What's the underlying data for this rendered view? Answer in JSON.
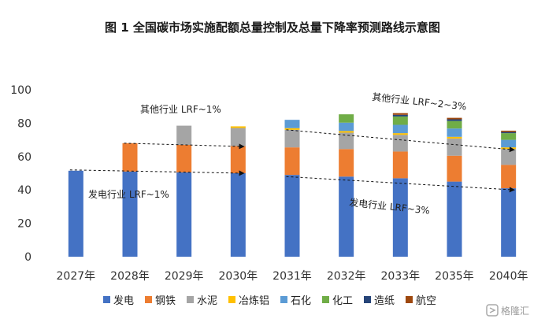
{
  "chart_data": {
    "type": "bar",
    "stacked": true,
    "title": "图 1 全国碳市场实施配额总量控制及总量下降率预测路线示意图",
    "categories": [
      "2027年",
      "2028年",
      "2029年",
      "2030年",
      "2031年",
      "2032年",
      "2033年",
      "2035年",
      "2040年"
    ],
    "ylim": [
      0,
      100
    ],
    "yticks": [
      0,
      20,
      40,
      60,
      80,
      100
    ],
    "grid": false,
    "legend_position": "bottom",
    "series": [
      {
        "name": "发电",
        "color": "#4472C4",
        "values": [
          51.5,
          51.0,
          50.5,
          50.0,
          49.0,
          48.0,
          47.0,
          45.0,
          41.0
        ]
      },
      {
        "name": "钢铁",
        "color": "#ED7D31",
        "values": [
          0,
          17.0,
          16.5,
          16.3,
          16.5,
          16.5,
          16.0,
          15.5,
          14.0
        ]
      },
      {
        "name": "水泥",
        "color": "#A5A5A5",
        "values": [
          0,
          0,
          11.5,
          10.8,
          10.5,
          9.8,
          10.0,
          10.3,
          9.5
        ]
      },
      {
        "name": "冶炼铝",
        "color": "#FFC000",
        "values": [
          0,
          0,
          0,
          1.0,
          1.0,
          1.0,
          1.0,
          1.0,
          1.0
        ]
      },
      {
        "name": "石化",
        "color": "#5B9BD5",
        "values": [
          0,
          0,
          0,
          0,
          5.0,
          5.0,
          5.0,
          5.0,
          4.5
        ]
      },
      {
        "name": "化工",
        "color": "#70AD47",
        "values": [
          0,
          0,
          0,
          0,
          0,
          5.0,
          5.0,
          4.5,
          4.0
        ]
      },
      {
        "name": "造纸",
        "color": "#264478",
        "values": [
          0,
          0,
          0,
          0,
          0,
          0,
          1.0,
          1.0,
          0.7
        ]
      },
      {
        "name": "航空",
        "color": "#9E480E",
        "values": [
          0,
          0,
          0,
          0,
          0,
          0,
          1.0,
          0.9,
          0.8
        ]
      }
    ],
    "annotations": [
      {
        "text": "其他行业 LRF~1%"
      },
      {
        "text": "其他行业 LRF~2~3%"
      },
      {
        "text": "发电行业 LRF~1%"
      },
      {
        "text": "发电行业 LRF~3%"
      }
    ],
    "trend_lines": [
      {
        "name": "other-phase1",
        "from": {
          "category": "2028年",
          "value": 68
        },
        "to": {
          "category": "2030年",
          "value": 66
        }
      },
      {
        "name": "other-phase2",
        "from": {
          "category": "2031年",
          "value": 76
        },
        "to": {
          "category": "2040年",
          "value": 64
        }
      },
      {
        "name": "power-phase1",
        "from": {
          "category": "2027年",
          "value": 52
        },
        "to": {
          "category": "2030年",
          "value": 50
        }
      },
      {
        "name": "power-phase2",
        "from": {
          "category": "2031年",
          "value": 48
        },
        "to": {
          "category": "2040年",
          "value": 40
        }
      }
    ]
  },
  "watermark": {
    "text": "格隆汇"
  }
}
